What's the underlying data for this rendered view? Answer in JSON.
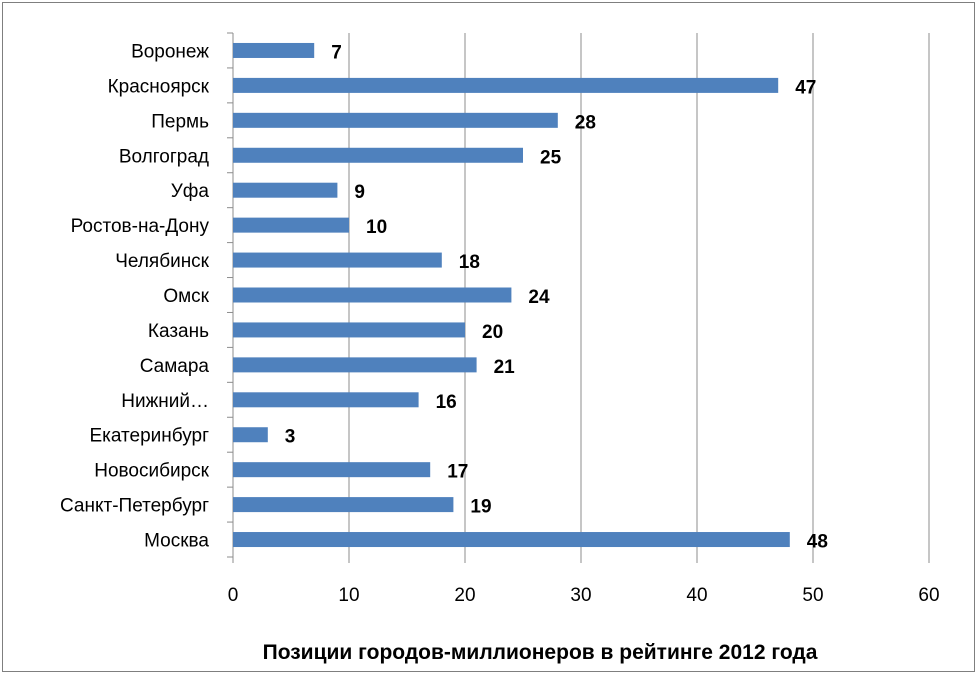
{
  "chart_data": {
    "type": "bar",
    "orientation": "horizontal",
    "title": "Позиции городов-миллионеров в рейтинге 2012 года",
    "categories": [
      "Воронеж",
      "Красноярск",
      "Пермь",
      "Волгоград",
      "Уфа",
      "Ростов-на-Дону",
      "Челябинск",
      "Омск",
      "Казань",
      "Самара",
      "Нижний…",
      "Екатеринбург",
      "Новосибирск",
      "Санкт-Петербург",
      "Москва"
    ],
    "values": [
      7,
      47,
      28,
      25,
      9,
      10,
      18,
      24,
      20,
      21,
      16,
      3,
      17,
      19,
      48
    ],
    "xlim": [
      0,
      60
    ],
    "xticks": [
      0,
      10,
      20,
      30,
      40,
      50,
      60
    ],
    "grid": true,
    "data_labels": true,
    "bar_color": "#4f81bd"
  }
}
